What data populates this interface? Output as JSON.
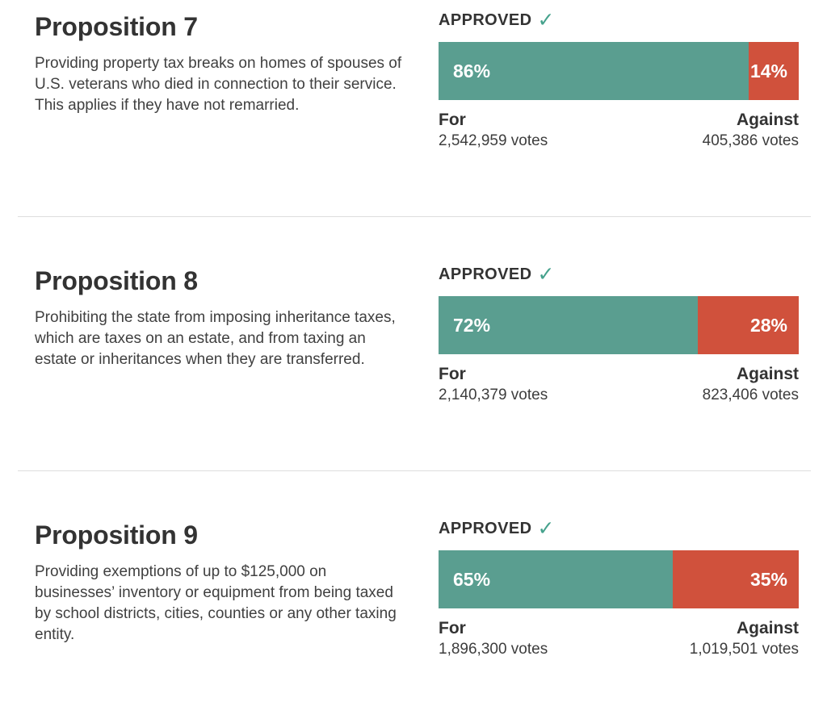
{
  "colors": {
    "for_bar": "#5a9e90",
    "against_bar": "#d0513c",
    "check": "#46a28d",
    "text": "#333333",
    "divider": "#dddddd"
  },
  "labels": {
    "check_icon": "✓",
    "for": "For",
    "against": "Against"
  },
  "propositions": [
    {
      "title": "Proposition 7",
      "description": "Providing property tax breaks on homes of spouses of U.S. veterans who died in connection to their service. This applies if they have not remarried.",
      "status": "APPROVED",
      "for_pct": "86%",
      "against_pct": "14%",
      "for_pct_value": 86,
      "against_pct_value": 14,
      "for_votes": "2,542,959 votes",
      "against_votes": "405,386 votes"
    },
    {
      "title": "Proposition 8",
      "description": "Prohibiting the state from imposing inheritance taxes, which are taxes on an estate, and from taxing an estate or inheritances when they are transferred.",
      "status": "APPROVED",
      "for_pct": "72%",
      "against_pct": "28%",
      "for_pct_value": 72,
      "against_pct_value": 28,
      "for_votes": "2,140,379 votes",
      "against_votes": "823,406 votes"
    },
    {
      "title": "Proposition 9",
      "description": "Providing exemptions of up to $125,000 on businesses’ inventory or equipment from being taxed by school districts, cities, counties or any other taxing entity.",
      "status": "APPROVED",
      "for_pct": "65%",
      "against_pct": "35%",
      "for_pct_value": 65,
      "against_pct_value": 35,
      "for_votes": "1,896,300 votes",
      "against_votes": "1,019,501 votes"
    }
  ],
  "chart_data": [
    {
      "type": "bar",
      "title": "Proposition 7",
      "result": "APPROVED",
      "stacked": true,
      "categories": [
        "For",
        "Against"
      ],
      "values_pct": [
        86,
        14
      ],
      "votes": [
        2542959,
        405386
      ],
      "legend_position": "below",
      "colors": [
        "#5a9e90",
        "#d0513c"
      ]
    },
    {
      "type": "bar",
      "title": "Proposition 8",
      "result": "APPROVED",
      "stacked": true,
      "categories": [
        "For",
        "Against"
      ],
      "values_pct": [
        72,
        28
      ],
      "votes": [
        2140379,
        823406
      ],
      "legend_position": "below",
      "colors": [
        "#5a9e90",
        "#d0513c"
      ]
    },
    {
      "type": "bar",
      "title": "Proposition 9",
      "result": "APPROVED",
      "stacked": true,
      "categories": [
        "For",
        "Against"
      ],
      "values_pct": [
        65,
        35
      ],
      "votes": [
        1896300,
        1019501
      ],
      "legend_position": "below",
      "colors": [
        "#5a9e90",
        "#d0513c"
      ]
    }
  ]
}
